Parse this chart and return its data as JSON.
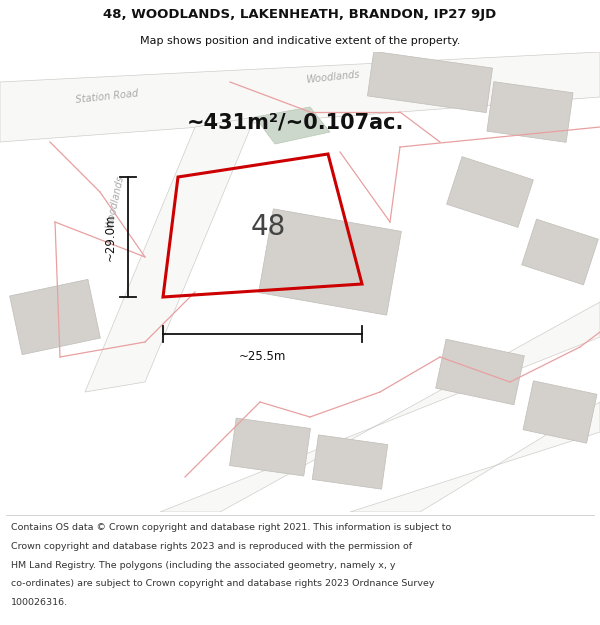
{
  "title_line1": "48, WOODLANDS, LAKENHEATH, BRANDON, IP27 9JD",
  "title_line2": "Map shows position and indicative extent of the property.",
  "area_text": "~431m²/~0.107ac.",
  "number_label": "48",
  "dim_vertical": "~29.0m",
  "dim_horizontal": "~25.5m",
  "footer_lines": [
    "Contains OS data © Crown copyright and database right 2021. This information is subject to Crown copyright and database rights 2023 and is reproduced with the permission of",
    "HM Land Registry. The polygons (including the associated geometry, namely x, y co-ordinates) are subject to Crown copyright and database rights 2023 Ordnance Survey",
    "100026316."
  ],
  "map_bg": "#edecea",
  "road_white": "#f8f8f6",
  "road_edge": "#d0ceca",
  "bldg_fill": "#d4d1cc",
  "bldg_edge": "#c0bdb8",
  "green_fill": "#cdd8cc",
  "green_edge": "#b8c8b4",
  "plot_edge": "#cc0000",
  "boundary_color": "#e8a0a0",
  "road_label_color": "#aaaaaa",
  "dim_color": "#111111",
  "text_color": "#111111",
  "footer_color": "#333333",
  "header_bg": "#ffffff",
  "footer_bg": "#ffffff"
}
